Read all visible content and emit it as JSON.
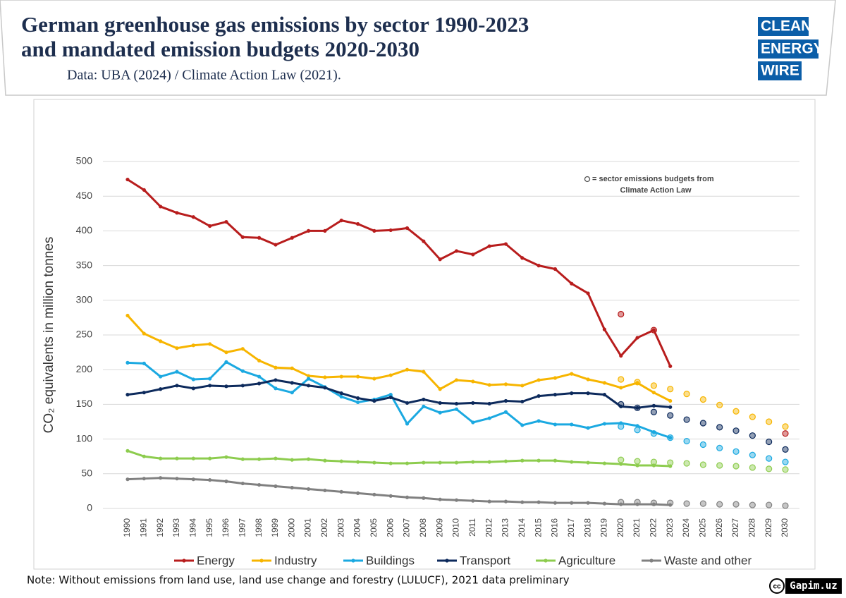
{
  "chart_data": {
    "type": "line",
    "title": [
      "German greenhouse gas emissions by sector 1990-2023",
      "and mandated emission budgets 2020-2030"
    ],
    "subtitle": "Data: UBA (2024) / Climate Action Law (2021).",
    "y_label": "CO₂ equivalents in million tonnes",
    "annotation": [
      "= sector emissions budgets from",
      "Climate Action Law"
    ],
    "note": "Note: Without emissions from land use, land use change and forestry (LULUCF), 2021 data preliminary",
    "logo": [
      "CLEAN",
      "ENERGY",
      "WIRE"
    ],
    "credit": [
      "cc",
      "Gapim.uz"
    ],
    "categories": [
      "1990",
      "1991",
      "1992",
      "1993",
      "1994",
      "1995",
      "1996",
      "1997",
      "1998",
      "1999",
      "2000",
      "2001",
      "2002",
      "2003",
      "2004",
      "2005",
      "2006",
      "2007",
      "2008",
      "2009",
      "2010",
      "2011",
      "2012",
      "2013",
      "2014",
      "2015",
      "2016",
      "2017",
      "2018",
      "2019",
      "2020",
      "2021",
      "2022",
      "2023",
      "2024",
      "2025",
      "2026",
      "2027",
      "2028",
      "2029",
      "2030"
    ],
    "ylim": [
      0,
      500
    ],
    "yticks": [
      0,
      50,
      100,
      150,
      200,
      250,
      300,
      350,
      400,
      450,
      500
    ],
    "grid": true,
    "legend": "bottom",
    "series": [
      {
        "name": "Energy",
        "color": "#b81d1d",
        "values": [
          474,
          459,
          435,
          426,
          420,
          407,
          413,
          391,
          390,
          380,
          390,
          400,
          400,
          415,
          410,
          400,
          401,
          404,
          385,
          359,
          371,
          366,
          378,
          381,
          361,
          350,
          345,
          324,
          310,
          258,
          220,
          246,
          257,
          205,
          null,
          null,
          null,
          null,
          null,
          null,
          null
        ],
        "budget": [
          null,
          null,
          null,
          null,
          null,
          null,
          null,
          null,
          null,
          null,
          null,
          null,
          null,
          null,
          null,
          null,
          null,
          null,
          null,
          null,
          null,
          null,
          null,
          null,
          null,
          null,
          null,
          null,
          null,
          null,
          280,
          null,
          257,
          null,
          null,
          null,
          null,
          null,
          null,
          null,
          108
        ]
      },
      {
        "name": "Industry",
        "color": "#f7b500",
        "values": [
          278,
          252,
          241,
          231,
          235,
          237,
          225,
          230,
          213,
          203,
          202,
          191,
          189,
          190,
          190,
          187,
          192,
          200,
          197,
          172,
          185,
          183,
          178,
          179,
          177,
          185,
          188,
          194,
          186,
          181,
          174,
          181,
          167,
          155,
          null,
          null,
          null,
          null,
          null,
          null,
          null
        ],
        "budget": [
          null,
          null,
          null,
          null,
          null,
          null,
          null,
          null,
          null,
          null,
          null,
          null,
          null,
          null,
          null,
          null,
          null,
          null,
          null,
          null,
          null,
          null,
          null,
          null,
          null,
          null,
          null,
          null,
          null,
          null,
          186,
          182,
          177,
          172,
          165,
          157,
          149,
          140,
          132,
          125,
          118
        ]
      },
      {
        "name": "Buildings",
        "color": "#1ba9e1",
        "values": [
          210,
          209,
          190,
          197,
          186,
          187,
          211,
          198,
          190,
          173,
          167,
          187,
          175,
          161,
          153,
          157,
          164,
          122,
          147,
          138,
          143,
          124,
          130,
          139,
          120,
          126,
          121,
          121,
          116,
          122,
          123,
          119,
          110,
          102,
          null,
          null,
          null,
          null,
          null,
          null,
          null
        ],
        "budget": [
          null,
          null,
          null,
          null,
          null,
          null,
          null,
          null,
          null,
          null,
          null,
          null,
          null,
          null,
          null,
          null,
          null,
          null,
          null,
          null,
          null,
          null,
          null,
          null,
          null,
          null,
          null,
          null,
          null,
          null,
          118,
          113,
          108,
          102,
          97,
          92,
          87,
          82,
          77,
          72,
          67
        ]
      },
      {
        "name": "Transport",
        "color": "#0d2a5c",
        "values": [
          164,
          167,
          172,
          177,
          173,
          177,
          176,
          177,
          180,
          185,
          181,
          177,
          174,
          166,
          159,
          155,
          160,
          152,
          157,
          152,
          151,
          152,
          151,
          155,
          154,
          162,
          164,
          166,
          166,
          164,
          147,
          145,
          148,
          146,
          null,
          null,
          null,
          null,
          null,
          null,
          null
        ],
        "budget": [
          null,
          null,
          null,
          null,
          null,
          null,
          null,
          null,
          null,
          null,
          null,
          null,
          null,
          null,
          null,
          null,
          null,
          null,
          null,
          null,
          null,
          null,
          null,
          null,
          null,
          null,
          null,
          null,
          null,
          null,
          150,
          145,
          139,
          134,
          128,
          123,
          117,
          112,
          105,
          96,
          85
        ]
      },
      {
        "name": "Agriculture",
        "color": "#8dcc4e",
        "values": [
          83,
          75,
          72,
          72,
          72,
          72,
          74,
          71,
          71,
          72,
          70,
          71,
          69,
          68,
          67,
          66,
          65,
          65,
          66,
          66,
          66,
          67,
          67,
          68,
          69,
          69,
          69,
          67,
          66,
          65,
          64,
          62,
          62,
          61,
          null,
          null,
          null,
          null,
          null,
          null,
          null
        ],
        "budget": [
          null,
          null,
          null,
          null,
          null,
          null,
          null,
          null,
          null,
          null,
          null,
          null,
          null,
          null,
          null,
          null,
          null,
          null,
          null,
          null,
          null,
          null,
          null,
          null,
          null,
          null,
          null,
          null,
          null,
          null,
          70,
          68,
          67,
          66,
          65,
          63,
          62,
          61,
          59,
          57,
          56
        ]
      },
      {
        "name": "Waste and other",
        "color": "#808080",
        "values": [
          42,
          43,
          44,
          43,
          42,
          41,
          39,
          36,
          34,
          32,
          30,
          28,
          26,
          24,
          22,
          20,
          18,
          16,
          15,
          13,
          12,
          11,
          10,
          10,
          9,
          9,
          8,
          8,
          8,
          7,
          6,
          6,
          6,
          5,
          null,
          null,
          null,
          null,
          null,
          null,
          null
        ],
        "budget": [
          null,
          null,
          null,
          null,
          null,
          null,
          null,
          null,
          null,
          null,
          null,
          null,
          null,
          null,
          null,
          null,
          null,
          null,
          null,
          null,
          null,
          null,
          null,
          null,
          null,
          null,
          null,
          null,
          null,
          null,
          9,
          9,
          8,
          8,
          7,
          7,
          6,
          6,
          5,
          5,
          4
        ]
      }
    ]
  }
}
